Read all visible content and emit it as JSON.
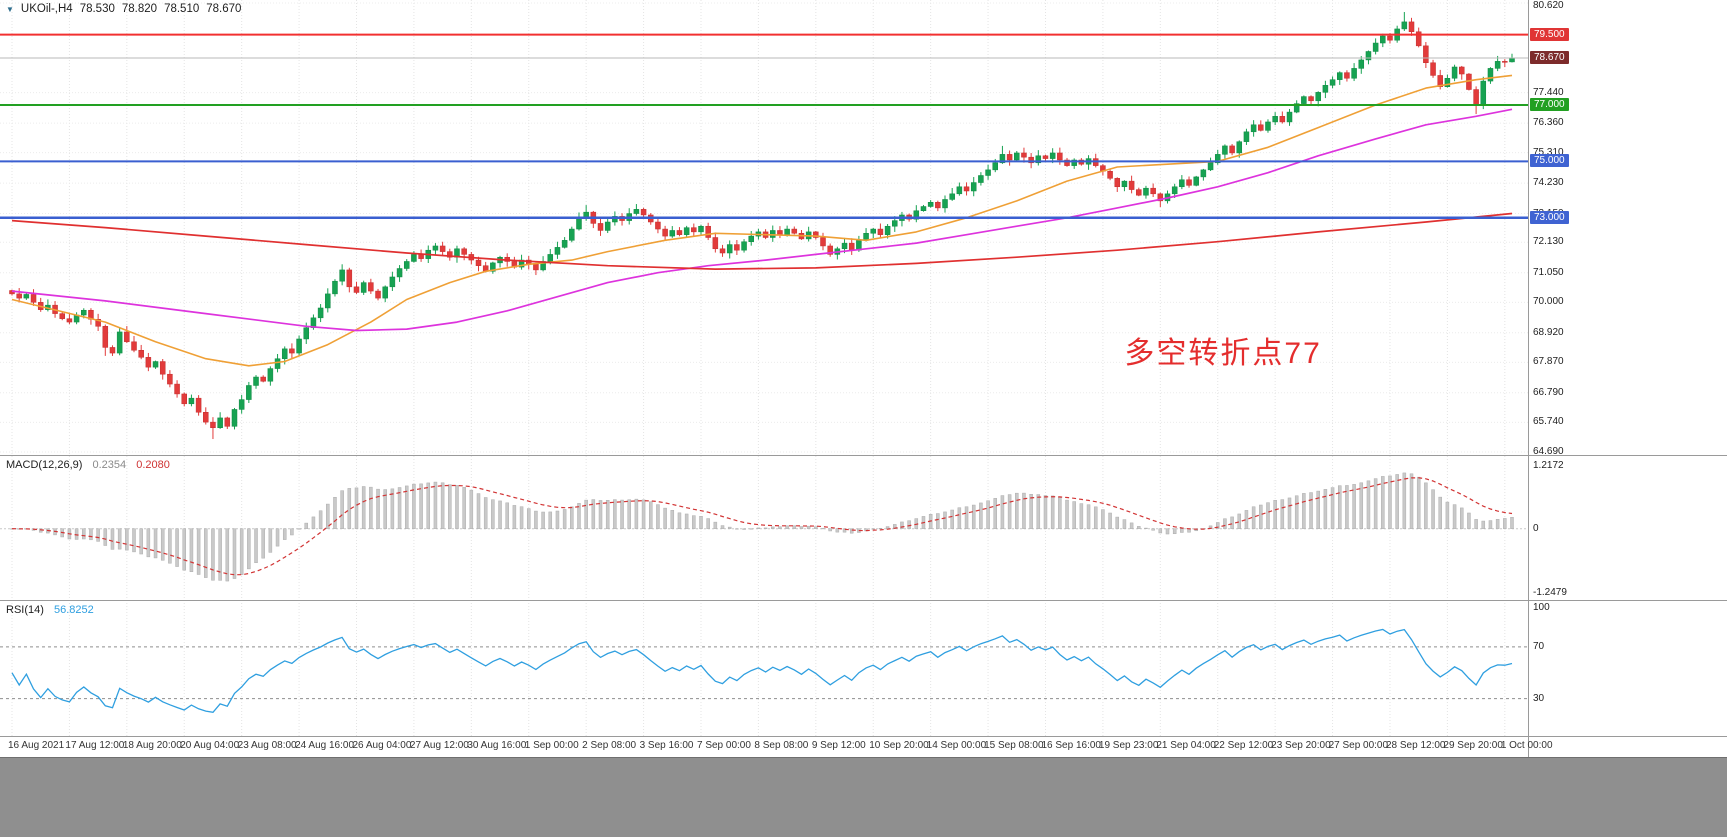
{
  "header": {
    "symbol_timeframe": "UKOil-,H4",
    "open": "78.530",
    "high": "78.820",
    "low": "78.510",
    "close": "78.670"
  },
  "price_axis": {
    "ticks": [
      "80.620",
      "77.440",
      "76.360",
      "75.310",
      "74.230",
      "73.150",
      "72.130",
      "71.050",
      "70.000",
      "68.920",
      "67.870",
      "66.790",
      "65.740",
      "64.690"
    ],
    "badges": [
      {
        "label": "79.500",
        "price": 79.5,
        "color": "#e03535"
      },
      {
        "label": "78.670",
        "price": 78.67,
        "color": "#7d2b2b"
      },
      {
        "label": "77.000",
        "price": 77.0,
        "color": "#22a022"
      },
      {
        "label": "75.000",
        "price": 75.0,
        "color": "#3f63d2"
      },
      {
        "label": "73.000",
        "price": 73.0,
        "color": "#3f63d2"
      }
    ]
  },
  "chart_data": [
    {
      "type": "candlestick",
      "title": "UKOil-,H4",
      "ylim": [
        64.69,
        80.62
      ],
      "label_step": 8,
      "x_labels": [
        "16 Aug 2021",
        "17 Aug 12:00",
        "18 Aug 20:00",
        "20 Aug 04:00",
        "23 Aug 08:00",
        "24 Aug 16:00",
        "26 Aug 04:00",
        "27 Aug 12:00",
        "30 Aug 16:00",
        "1 Sep 00:00",
        "2 Sep 08:00",
        "3 Sep 16:00",
        "7 Sep 00:00",
        "8 Sep 08:00",
        "9 Sep 12:00",
        "10 Sep 20:00",
        "14 Sep 00:00",
        "15 Sep 08:00",
        "16 Sep 16:00",
        "19 Sep 23:00",
        "21 Sep 04:00",
        "22 Sep 12:00",
        "23 Sep 20:00",
        "27 Sep 00:00",
        "28 Sep 12:00",
        "29 Sep 20:00",
        "1 Oct 00:00"
      ],
      "first_open": 70.42,
      "closes": [
        70.3,
        70.15,
        70.28,
        70.0,
        69.74,
        69.9,
        69.6,
        69.42,
        69.3,
        69.55,
        69.72,
        69.4,
        69.15,
        68.4,
        68.2,
        68.95,
        68.6,
        68.3,
        68.05,
        67.7,
        67.9,
        67.45,
        67.1,
        66.75,
        66.4,
        66.6,
        66.1,
        65.75,
        65.55,
        65.9,
        65.6,
        66.2,
        66.55,
        67.05,
        67.35,
        67.2,
        67.65,
        68.0,
        68.35,
        68.2,
        68.7,
        69.1,
        69.45,
        69.8,
        70.3,
        70.75,
        71.15,
        70.55,
        70.35,
        70.7,
        70.4,
        70.15,
        70.55,
        70.9,
        71.2,
        71.45,
        71.7,
        71.55,
        71.85,
        72.0,
        71.8,
        71.6,
        71.9,
        71.7,
        71.5,
        71.3,
        71.1,
        71.4,
        71.6,
        71.45,
        71.25,
        71.5,
        71.35,
        71.15,
        71.45,
        71.7,
        71.95,
        72.2,
        72.6,
        73.0,
        73.2,
        72.8,
        72.55,
        72.85,
        73.05,
        72.9,
        73.15,
        73.3,
        73.1,
        72.85,
        72.6,
        72.35,
        72.55,
        72.4,
        72.65,
        72.5,
        72.7,
        72.3,
        71.9,
        71.75,
        72.05,
        71.85,
        72.15,
        72.35,
        72.5,
        72.3,
        72.55,
        72.4,
        72.6,
        72.45,
        72.25,
        72.5,
        72.3,
        72.0,
        71.7,
        71.9,
        72.1,
        71.85,
        72.2,
        72.45,
        72.6,
        72.4,
        72.7,
        72.9,
        73.1,
        72.95,
        73.25,
        73.4,
        73.55,
        73.35,
        73.65,
        73.85,
        74.1,
        73.95,
        74.25,
        74.5,
        74.7,
        74.95,
        75.25,
        75.05,
        75.3,
        75.15,
        74.95,
        75.2,
        75.1,
        75.3,
        75.05,
        74.85,
        75.05,
        74.9,
        75.1,
        74.85,
        74.65,
        74.4,
        74.1,
        74.3,
        74.0,
        73.8,
        74.05,
        73.85,
        73.6,
        73.85,
        74.1,
        74.35,
        74.15,
        74.45,
        74.7,
        74.95,
        75.25,
        75.55,
        75.3,
        75.7,
        76.05,
        76.3,
        76.1,
        76.4,
        76.6,
        76.4,
        76.75,
        77.05,
        77.3,
        77.15,
        77.45,
        77.7,
        77.9,
        78.15,
        77.95,
        78.3,
        78.6,
        78.9,
        79.2,
        79.45,
        79.3,
        79.7,
        79.95,
        79.6,
        79.1,
        78.5,
        78.05,
        77.65,
        77.95,
        78.35,
        78.1,
        77.55,
        77.0,
        77.85,
        78.3,
        78.55,
        78.53,
        78.67
      ],
      "ohlc_overrides": {
        "13": {
          "l": 68.1
        },
        "28": {
          "l": 65.15
        },
        "46": {
          "h": 71.35
        },
        "80": {
          "h": 73.45
        },
        "138": {
          "h": 75.55
        },
        "160": {
          "l": 73.38
        },
        "194": {
          "h": 80.3
        },
        "204": {
          "l": 76.68
        },
        "209": {
          "o": 78.53,
          "h": 78.82,
          "l": 78.51,
          "c": 78.67
        }
      },
      "colors": {
        "up": "#17a252",
        "down": "#e23b3b",
        "up_border": "#0e8a42",
        "down_border": "#c32f2f"
      },
      "horizontal_lines": [
        {
          "price": 79.5,
          "color": "#f23030",
          "width": 2
        },
        {
          "price": 77.0,
          "color": "#22a022",
          "width": 2
        },
        {
          "price": 75.0,
          "color": "#3a5fd0",
          "width": 2
        },
        {
          "price": 73.0,
          "color": "#3a5fd0",
          "width": 2.5
        },
        {
          "price": 78.67,
          "color": "#b8b8b8",
          "width": 1
        }
      ],
      "moving_averages": [
        {
          "name": "ma-fast-orange",
          "color": "#efa036",
          "width": 1.6,
          "points": [
            [
              0,
              70.1
            ],
            [
              13,
              69.3
            ],
            [
              20,
              68.6
            ],
            [
              27,
              68.0
            ],
            [
              33,
              67.75
            ],
            [
              38,
              67.9
            ],
            [
              44,
              68.5
            ],
            [
              50,
              69.3
            ],
            [
              55,
              70.1
            ],
            [
              61,
              70.7
            ],
            [
              66,
              71.1
            ],
            [
              72,
              71.35
            ],
            [
              78,
              71.5
            ],
            [
              83,
              71.8
            ],
            [
              91,
              72.2
            ],
            [
              98,
              72.45
            ],
            [
              105,
              72.4
            ],
            [
              112,
              72.35
            ],
            [
              119,
              72.2
            ],
            [
              126,
              72.5
            ],
            [
              133,
              73.0
            ],
            [
              140,
              73.6
            ],
            [
              147,
              74.3
            ],
            [
              154,
              74.8
            ],
            [
              161,
              74.9
            ],
            [
              168,
              75.0
            ],
            [
              175,
              75.5
            ],
            [
              182,
              76.2
            ],
            [
              190,
              77.0
            ],
            [
              197,
              77.6
            ],
            [
              204,
              77.9
            ],
            [
              209,
              78.05
            ]
          ]
        },
        {
          "name": "ma-mid-magenta",
          "color": "#dd33dd",
          "width": 1.7,
          "points": [
            [
              0,
              70.4
            ],
            [
              13,
              70.05
            ],
            [
              27,
              69.6
            ],
            [
              41,
              69.15
            ],
            [
              48,
              69.0
            ],
            [
              55,
              69.05
            ],
            [
              62,
              69.3
            ],
            [
              69,
              69.7
            ],
            [
              76,
              70.2
            ],
            [
              83,
              70.7
            ],
            [
              90,
              71.05
            ],
            [
              97,
              71.3
            ],
            [
              105,
              71.5
            ],
            [
              112,
              71.7
            ],
            [
              119,
              71.9
            ],
            [
              126,
              72.1
            ],
            [
              133,
              72.4
            ],
            [
              140,
              72.7
            ],
            [
              147,
              73.0
            ],
            [
              154,
              73.35
            ],
            [
              161,
              73.7
            ],
            [
              168,
              74.1
            ],
            [
              175,
              74.6
            ],
            [
              182,
              75.2
            ],
            [
              190,
              75.8
            ],
            [
              197,
              76.3
            ],
            [
              204,
              76.6
            ],
            [
              209,
              76.85
            ]
          ]
        },
        {
          "name": "ma-slow-red",
          "color": "#e03030",
          "width": 1.7,
          "points": [
            [
              0,
              72.9
            ],
            [
              13,
              72.65
            ],
            [
              27,
              72.35
            ],
            [
              41,
              72.05
            ],
            [
              55,
              71.75
            ],
            [
              69,
              71.5
            ],
            [
              83,
              71.3
            ],
            [
              98,
              71.18
            ],
            [
              112,
              71.22
            ],
            [
              126,
              71.38
            ],
            [
              140,
              71.6
            ],
            [
              154,
              71.85
            ],
            [
              168,
              72.15
            ],
            [
              182,
              72.5
            ],
            [
              197,
              72.85
            ],
            [
              209,
              73.15
            ]
          ]
        }
      ],
      "annotation": {
        "text": "多空转折点77",
        "x_index": 155,
        "price": 69.1,
        "color": "#e42d2d"
      }
    },
    {
      "type": "bar",
      "name": "MACD",
      "label": "MACD(12,26,9)",
      "params": [
        12,
        26,
        9
      ],
      "value_main": "0.2354",
      "value_signal": "0.2080",
      "axis": [
        "1.2172",
        "0",
        "-1.2479"
      ],
      "ylim": [
        -1.2479,
        1.2172
      ],
      "source": "closes",
      "colors": {
        "histogram": "#c9c9c9",
        "histogram_border": "#adadad",
        "signal": "#d23434"
      }
    },
    {
      "type": "line",
      "name": "RSI",
      "label": "RSI(14)",
      "period": 14,
      "value": "56.8252",
      "levels": [
        100,
        70,
        30
      ],
      "ylim": [
        0,
        100
      ],
      "source": "closes",
      "color": "#2f9fe0"
    }
  ]
}
